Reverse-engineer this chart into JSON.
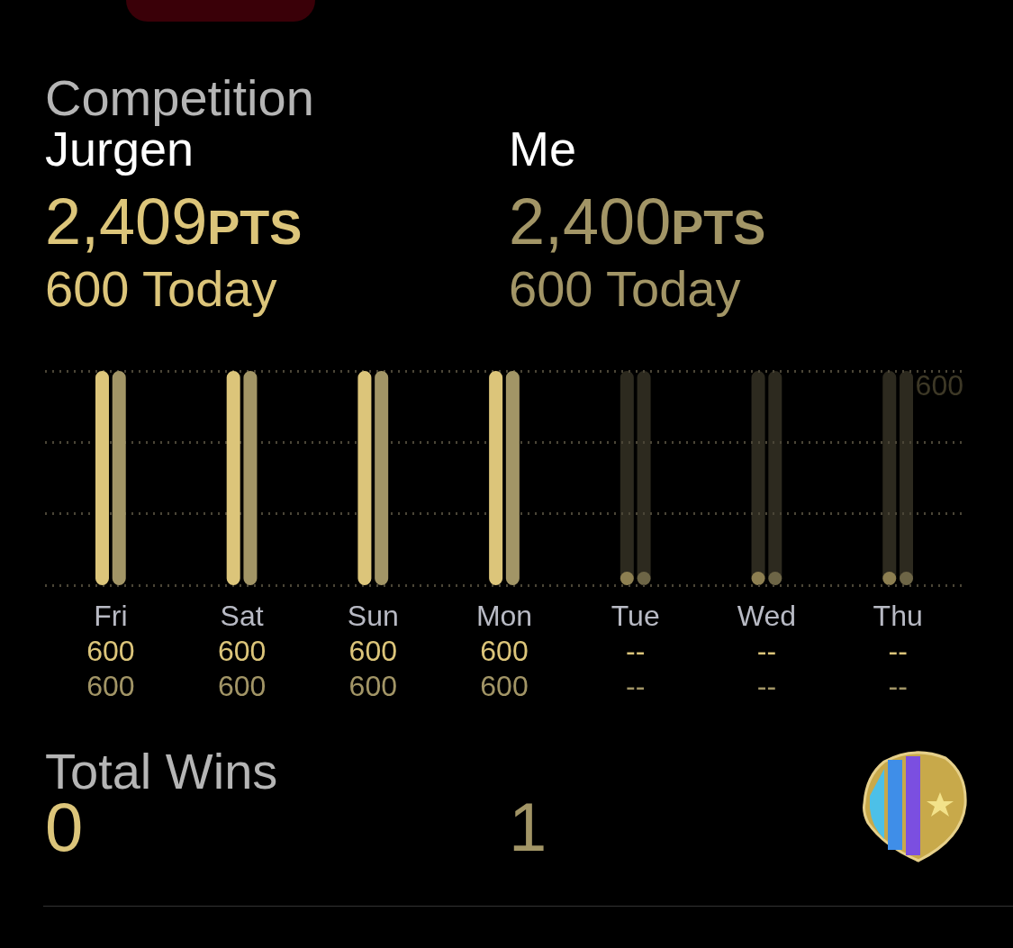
{
  "chart_data": {
    "type": "bar",
    "title": "Competition",
    "categories": [
      "Fri",
      "Sat",
      "Sun",
      "Mon",
      "Tue",
      "Wed",
      "Thu"
    ],
    "series": [
      {
        "color": "#dcc57a",
        "values": [
          600,
          600,
          600,
          600,
          null,
          null,
          null
        ],
        "value_labels": [
          "600",
          "600",
          "600",
          "600",
          "--",
          "--",
          "--"
        ]
      },
      {
        "color": "#a29566",
        "values": [
          600,
          600,
          600,
          600,
          null,
          null,
          null
        ],
        "value_labels": [
          "600",
          "600",
          "600",
          "600",
          "--",
          "--",
          "--"
        ]
      }
    ],
    "ylim": [
      0,
      600
    ],
    "yticks": [
      {
        "value": 0,
        "label": null
      },
      {
        "value": 200,
        "label": null
      },
      {
        "value": 400,
        "label": null
      },
      600
    ],
    "grid": "y",
    "annotations": [
      "Jurgen",
      "2,409PTS",
      "600 Today",
      "Me",
      "2,400PTS",
      "600 Today",
      "Total Wins",
      "0",
      "1"
    ]
  }
}
